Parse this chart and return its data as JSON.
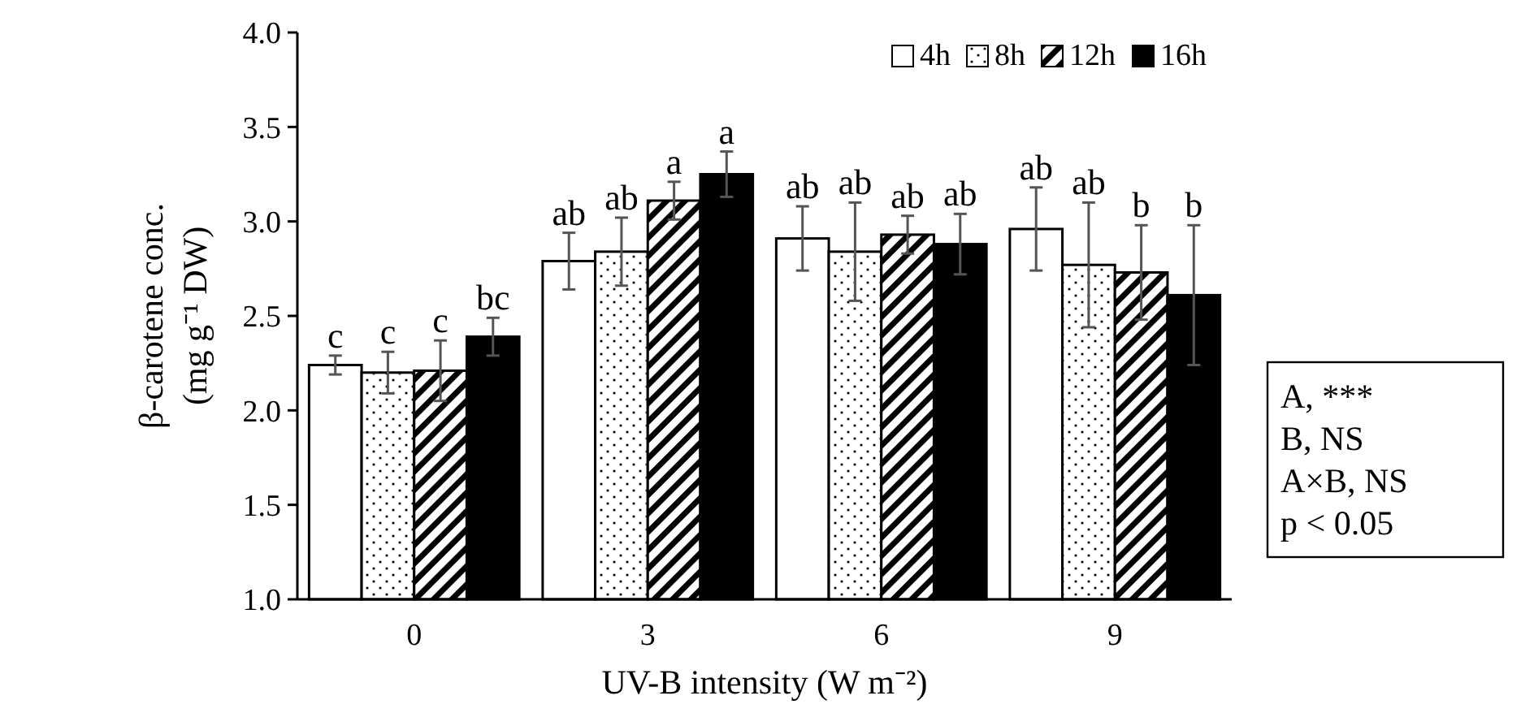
{
  "chart_data": {
    "type": "bar",
    "xlabel": "UV-B intensity (W m⁻²)",
    "ylabel": "β-carotene conc.\n(mg g⁻¹ DW)",
    "categories": [
      "0",
      "3",
      "6",
      "9"
    ],
    "series": [
      {
        "name": "4h",
        "color": "#ffffff",
        "values": [
          2.24,
          2.79,
          2.91,
          2.96
        ],
        "errors": [
          0.05,
          0.15,
          0.17,
          0.22
        ],
        "value_labels": [
          "c",
          "ab",
          "ab",
          "ab"
        ]
      },
      {
        "name": "8h",
        "color": "#ffffff",
        "values": [
          2.2,
          2.84,
          2.84,
          2.77
        ],
        "errors": [
          0.11,
          0.18,
          0.26,
          0.33
        ],
        "value_labels": [
          "c",
          "ab",
          "ab",
          "ab"
        ]
      },
      {
        "name": "12h",
        "color": "#000000",
        "values": [
          2.21,
          3.11,
          2.93,
          2.73
        ],
        "errors": [
          0.16,
          0.1,
          0.1,
          0.25
        ],
        "value_labels": [
          "c",
          "a",
          "ab",
          "b"
        ]
      },
      {
        "name": "16h",
        "color": "#000000",
        "values": [
          2.39,
          3.25,
          2.88,
          2.61
        ],
        "errors": [
          0.1,
          0.12,
          0.16,
          0.37
        ],
        "value_labels": [
          "bc",
          "a",
          "ab",
          "b"
        ]
      }
    ],
    "ylim": [
      1,
      4
    ],
    "yticks": [
      {
        "value": 1,
        "label": "1.0"
      },
      {
        "value": 1.5,
        "label": "1.5"
      },
      {
        "value": 2,
        "label": "2.0"
      },
      {
        "value": 2.5,
        "label": "2.5"
      },
      {
        "value": 3,
        "label": "3.0"
      },
      {
        "value": 3.5,
        "label": "3.5"
      },
      {
        "value": 4,
        "label": "4.0"
      }
    ],
    "legend": "top right",
    "annotations": [
      "A, ***",
      "B, NS",
      "A×B, NS",
      "p < 0.05"
    ]
  }
}
